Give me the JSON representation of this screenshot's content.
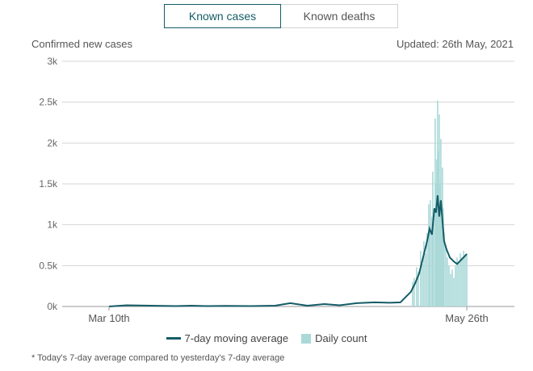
{
  "toggle": {
    "known_cases": "Known cases",
    "known_deaths": "Known deaths",
    "active": "known_cases"
  },
  "meta": {
    "ylabel": "Confirmed new cases",
    "updated": "Updated: 26th May, 2021"
  },
  "legend": {
    "line": "7-day moving average",
    "bars": "Daily count"
  },
  "footnote": "* Today's 7-day average compared to yesterday's 7-day average",
  "colors": {
    "line": "#145c66",
    "bars": "#aad9d8",
    "grid": "#d4d4d4",
    "active": "#145c66"
  },
  "chart_data": {
    "type": "bar",
    "ylabel": "Confirmed new cases",
    "ylim": [
      0,
      3000
    ],
    "yticks": [
      {
        "value": 0,
        "label": "0k"
      },
      {
        "value": 500,
        "label": "0.5k"
      },
      {
        "value": 1000,
        "label": "1k"
      },
      {
        "value": 1500,
        "label": "1.5k"
      },
      {
        "value": 2000,
        "label": "2k"
      },
      {
        "value": 2500,
        "label": "2.5k"
      },
      {
        "value": 3000,
        "label": "3k"
      }
    ],
    "xrange": [
      "2020-03-10",
      "2021-05-26"
    ],
    "xticks": [
      {
        "date": "2020-03-10",
        "label": "Mar 10th"
      },
      {
        "date": "2021-05-26",
        "label": "May 26th"
      }
    ],
    "daily_count": {
      "name": "Daily count",
      "points": [
        [
          "2021-03-20",
          300
        ],
        [
          "2021-03-22",
          350
        ],
        [
          "2021-03-25",
          480
        ],
        [
          "2021-03-27",
          420
        ],
        [
          "2021-03-30",
          680
        ],
        [
          "2021-04-01",
          520
        ],
        [
          "2021-04-03",
          800
        ],
        [
          "2021-04-05",
          650
        ],
        [
          "2021-04-07",
          900
        ],
        [
          "2021-04-09",
          1250
        ],
        [
          "2021-04-10",
          1000
        ],
        [
          "2021-04-11",
          1300
        ],
        [
          "2021-04-13",
          1100
        ],
        [
          "2021-04-14",
          1650
        ],
        [
          "2021-04-15",
          1200
        ],
        [
          "2021-04-17",
          2300
        ],
        [
          "2021-04-18",
          1500
        ],
        [
          "2021-04-19",
          1800
        ],
        [
          "2021-04-20",
          2520
        ],
        [
          "2021-04-21",
          1900
        ],
        [
          "2021-04-22",
          2350
        ],
        [
          "2021-04-23",
          1500
        ],
        [
          "2021-04-24",
          2050
        ],
        [
          "2021-04-25",
          1300
        ],
        [
          "2021-04-26",
          1700
        ],
        [
          "2021-04-27",
          1200
        ],
        [
          "2021-04-28",
          900
        ],
        [
          "2021-04-30",
          750
        ],
        [
          "2021-05-02",
          600
        ],
        [
          "2021-05-04",
          500
        ],
        [
          "2021-05-06",
          400
        ],
        [
          "2021-05-08",
          450
        ],
        [
          "2021-05-10",
          350
        ],
        [
          "2021-05-12",
          500
        ],
        [
          "2021-05-14",
          600
        ],
        [
          "2021-05-16",
          550
        ],
        [
          "2021-05-18",
          650
        ],
        [
          "2021-05-20",
          600
        ],
        [
          "2021-05-22",
          680
        ],
        [
          "2021-05-24",
          640
        ],
        [
          "2021-05-26",
          650
        ]
      ]
    },
    "moving_average": {
      "name": "7-day moving average",
      "points": [
        [
          "2020-03-10",
          0
        ],
        [
          "2020-04-01",
          15
        ],
        [
          "2020-05-01",
          10
        ],
        [
          "2020-06-01",
          5
        ],
        [
          "2020-06-20",
          10
        ],
        [
          "2020-07-10",
          5
        ],
        [
          "2020-08-01",
          8
        ],
        [
          "2020-09-01",
          5
        ],
        [
          "2020-10-01",
          10
        ],
        [
          "2020-10-20",
          40
        ],
        [
          "2020-11-10",
          10
        ],
        [
          "2020-12-01",
          30
        ],
        [
          "2020-12-20",
          15
        ],
        [
          "2021-01-10",
          40
        ],
        [
          "2021-02-01",
          50
        ],
        [
          "2021-02-20",
          45
        ],
        [
          "2021-03-05",
          50
        ],
        [
          "2021-03-12",
          120
        ],
        [
          "2021-03-18",
          180
        ],
        [
          "2021-03-23",
          280
        ],
        [
          "2021-03-28",
          400
        ],
        [
          "2021-04-02",
          600
        ],
        [
          "2021-04-07",
          800
        ],
        [
          "2021-04-10",
          950
        ],
        [
          "2021-04-13",
          880
        ],
        [
          "2021-04-16",
          1200
        ],
        [
          "2021-04-18",
          1150
        ],
        [
          "2021-04-20",
          1360
        ],
        [
          "2021-04-22",
          1100
        ],
        [
          "2021-04-24",
          1300
        ],
        [
          "2021-04-26",
          1050
        ],
        [
          "2021-04-28",
          800
        ],
        [
          "2021-05-01",
          700
        ],
        [
          "2021-05-05",
          600
        ],
        [
          "2021-05-10",
          550
        ],
        [
          "2021-05-14",
          520
        ],
        [
          "2021-05-18",
          560
        ],
        [
          "2021-05-22",
          600
        ],
        [
          "2021-05-26",
          640
        ]
      ]
    },
    "grid": true,
    "legend_position": "bottom"
  }
}
